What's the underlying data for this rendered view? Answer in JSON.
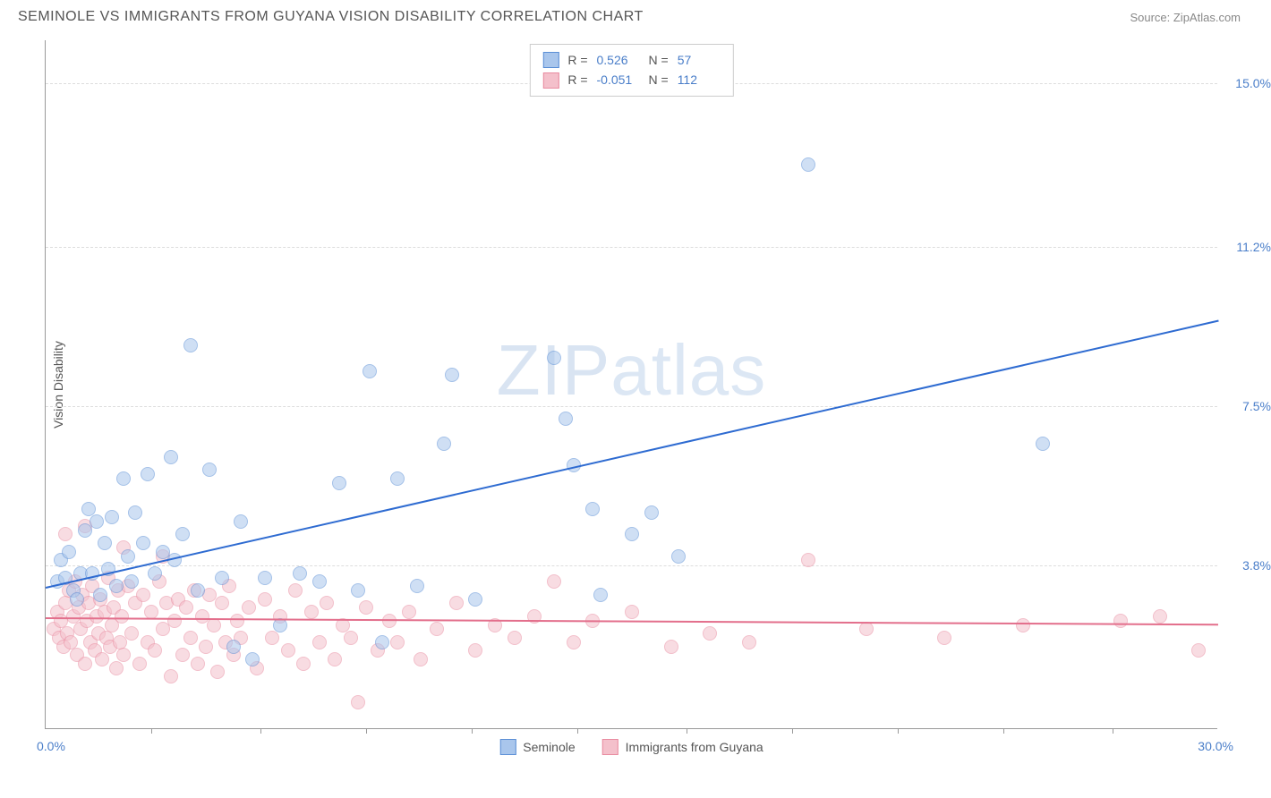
{
  "header": {
    "title": "SEMINOLE VS IMMIGRANTS FROM GUYANA VISION DISABILITY CORRELATION CHART",
    "source": "Source: ZipAtlas.com"
  },
  "watermark": "ZIPatlas",
  "chart": {
    "type": "scatter",
    "y_axis_title": "Vision Disability",
    "background_color": "#ffffff",
    "grid_color": "#dddddd",
    "axis_color": "#999999",
    "xlim": [
      0,
      30
    ],
    "ylim": [
      0,
      16
    ],
    "x_min_label": "0.0%",
    "x_max_label": "30.0%",
    "y_ticks": [
      {
        "value": 3.8,
        "label": "3.8%"
      },
      {
        "value": 7.5,
        "label": "7.5%"
      },
      {
        "value": 11.2,
        "label": "11.2%"
      },
      {
        "value": 15.0,
        "label": "15.0%"
      }
    ],
    "x_tick_positions": [
      2.7,
      5.5,
      8.2,
      10.9,
      13.6,
      16.4,
      19.1,
      21.8,
      24.5,
      27.3
    ],
    "tick_label_color": "#4a7ec9",
    "label_fontsize": 14,
    "title_fontsize": 16,
    "marker_radius": 8,
    "marker_opacity": 0.55,
    "series": [
      {
        "name": "Seminole",
        "fill_color": "#a9c6ec",
        "stroke_color": "#5b8fd6",
        "line_color": "#2e6bd1",
        "R": "0.526",
        "N": "57",
        "trend": {
          "y_at_x0": 3.3,
          "y_at_xmax": 9.5
        },
        "points": [
          [
            0.3,
            3.4
          ],
          [
            0.4,
            3.9
          ],
          [
            0.5,
            3.5
          ],
          [
            0.6,
            4.1
          ],
          [
            0.7,
            3.2
          ],
          [
            0.8,
            3.0
          ],
          [
            0.9,
            3.6
          ],
          [
            1.0,
            4.6
          ],
          [
            1.1,
            5.1
          ],
          [
            1.2,
            3.6
          ],
          [
            1.3,
            4.8
          ],
          [
            1.4,
            3.1
          ],
          [
            1.5,
            4.3
          ],
          [
            1.6,
            3.7
          ],
          [
            1.7,
            4.9
          ],
          [
            1.8,
            3.3
          ],
          [
            2.0,
            5.8
          ],
          [
            2.1,
            4.0
          ],
          [
            2.2,
            3.4
          ],
          [
            2.3,
            5.0
          ],
          [
            2.5,
            4.3
          ],
          [
            2.6,
            5.9
          ],
          [
            2.8,
            3.6
          ],
          [
            3.0,
            4.1
          ],
          [
            3.2,
            6.3
          ],
          [
            3.3,
            3.9
          ],
          [
            3.5,
            4.5
          ],
          [
            3.7,
            8.9
          ],
          [
            3.9,
            3.2
          ],
          [
            4.2,
            6.0
          ],
          [
            4.5,
            3.5
          ],
          [
            4.8,
            1.9
          ],
          [
            5.0,
            4.8
          ],
          [
            5.3,
            1.6
          ],
          [
            5.6,
            3.5
          ],
          [
            6.0,
            2.4
          ],
          [
            6.5,
            3.6
          ],
          [
            7.0,
            3.4
          ],
          [
            7.5,
            5.7
          ],
          [
            8.0,
            3.2
          ],
          [
            8.3,
            8.3
          ],
          [
            8.6,
            2.0
          ],
          [
            9.0,
            5.8
          ],
          [
            9.5,
            3.3
          ],
          [
            10.2,
            6.6
          ],
          [
            10.4,
            8.2
          ],
          [
            11.0,
            3.0
          ],
          [
            13.0,
            8.6
          ],
          [
            13.3,
            7.2
          ],
          [
            13.5,
            6.1
          ],
          [
            14.0,
            5.1
          ],
          [
            14.2,
            3.1
          ],
          [
            15.0,
            4.5
          ],
          [
            15.5,
            5.0
          ],
          [
            16.2,
            4.0
          ],
          [
            19.5,
            13.1
          ],
          [
            25.5,
            6.6
          ]
        ]
      },
      {
        "name": "Immigrants from Guyana",
        "fill_color": "#f4c0cb",
        "stroke_color": "#e98ba0",
        "line_color": "#e36f8c",
        "R": "-0.051",
        "N": "112",
        "trend": {
          "y_at_x0": 2.6,
          "y_at_xmax": 2.45
        },
        "points": [
          [
            0.2,
            2.3
          ],
          [
            0.3,
            2.7
          ],
          [
            0.35,
            2.1
          ],
          [
            0.4,
            2.5
          ],
          [
            0.45,
            1.9
          ],
          [
            0.5,
            2.9
          ],
          [
            0.55,
            2.2
          ],
          [
            0.6,
            3.2
          ],
          [
            0.65,
            2.0
          ],
          [
            0.7,
            2.6
          ],
          [
            0.75,
            3.4
          ],
          [
            0.8,
            1.7
          ],
          [
            0.85,
            2.8
          ],
          [
            0.9,
            2.3
          ],
          [
            0.95,
            3.1
          ],
          [
            1.0,
            1.5
          ],
          [
            1.05,
            2.5
          ],
          [
            1.1,
            2.9
          ],
          [
            1.15,
            2.0
          ],
          [
            1.2,
            3.3
          ],
          [
            1.25,
            1.8
          ],
          [
            1.3,
            2.6
          ],
          [
            1.35,
            2.2
          ],
          [
            1.4,
            3.0
          ],
          [
            1.45,
            1.6
          ],
          [
            1.5,
            2.7
          ],
          [
            1.55,
            2.1
          ],
          [
            1.6,
            3.5
          ],
          [
            1.65,
            1.9
          ],
          [
            1.7,
            2.4
          ],
          [
            1.75,
            2.8
          ],
          [
            1.8,
            1.4
          ],
          [
            1.85,
            3.2
          ],
          [
            1.9,
            2.0
          ],
          [
            1.95,
            2.6
          ],
          [
            2.0,
            1.7
          ],
          [
            2.1,
            3.3
          ],
          [
            2.2,
            2.2
          ],
          [
            2.3,
            2.9
          ],
          [
            2.4,
            1.5
          ],
          [
            2.5,
            3.1
          ],
          [
            2.6,
            2.0
          ],
          [
            2.7,
            2.7
          ],
          [
            2.8,
            1.8
          ],
          [
            2.9,
            3.4
          ],
          [
            3.0,
            2.3
          ],
          [
            3.1,
            2.9
          ],
          [
            3.2,
            1.2
          ],
          [
            3.3,
            2.5
          ],
          [
            3.4,
            3.0
          ],
          [
            3.5,
            1.7
          ],
          [
            3.6,
            2.8
          ],
          [
            3.7,
            2.1
          ],
          [
            3.8,
            3.2
          ],
          [
            3.9,
            1.5
          ],
          [
            4.0,
            2.6
          ],
          [
            4.1,
            1.9
          ],
          [
            4.2,
            3.1
          ],
          [
            4.3,
            2.4
          ],
          [
            4.4,
            1.3
          ],
          [
            4.5,
            2.9
          ],
          [
            4.6,
            2.0
          ],
          [
            4.7,
            3.3
          ],
          [
            4.8,
            1.7
          ],
          [
            4.9,
            2.5
          ],
          [
            5.0,
            2.1
          ],
          [
            5.2,
            2.8
          ],
          [
            5.4,
            1.4
          ],
          [
            5.6,
            3.0
          ],
          [
            5.8,
            2.1
          ],
          [
            6.0,
            2.6
          ],
          [
            6.2,
            1.8
          ],
          [
            6.4,
            3.2
          ],
          [
            6.6,
            1.5
          ],
          [
            6.8,
            2.7
          ],
          [
            7.0,
            2.0
          ],
          [
            7.2,
            2.9
          ],
          [
            7.4,
            1.6
          ],
          [
            7.6,
            2.4
          ],
          [
            7.8,
            2.1
          ],
          [
            8.0,
            0.6
          ],
          [
            8.2,
            2.8
          ],
          [
            8.5,
            1.8
          ],
          [
            8.8,
            2.5
          ],
          [
            9.0,
            2.0
          ],
          [
            9.3,
            2.7
          ],
          [
            9.6,
            1.6
          ],
          [
            10.0,
            2.3
          ],
          [
            10.5,
            2.9
          ],
          [
            11.0,
            1.8
          ],
          [
            11.5,
            2.4
          ],
          [
            12.0,
            2.1
          ],
          [
            12.5,
            2.6
          ],
          [
            13.0,
            3.4
          ],
          [
            13.5,
            2.0
          ],
          [
            14.0,
            2.5
          ],
          [
            15.0,
            2.7
          ],
          [
            16.0,
            1.9
          ],
          [
            17.0,
            2.2
          ],
          [
            18.0,
            2.0
          ],
          [
            19.5,
            3.9
          ],
          [
            21.0,
            2.3
          ],
          [
            23.0,
            2.1
          ],
          [
            25.0,
            2.4
          ],
          [
            27.5,
            2.5
          ],
          [
            28.5,
            2.6
          ],
          [
            29.5,
            1.8
          ],
          [
            1.0,
            4.7
          ],
          [
            0.5,
            4.5
          ],
          [
            2.0,
            4.2
          ],
          [
            3.0,
            4.0
          ]
        ]
      }
    ],
    "stats_legend_labels": {
      "R": "R =",
      "N": "N ="
    },
    "bottom_legend": [
      {
        "series_index": 0
      },
      {
        "series_index": 1
      }
    ]
  }
}
